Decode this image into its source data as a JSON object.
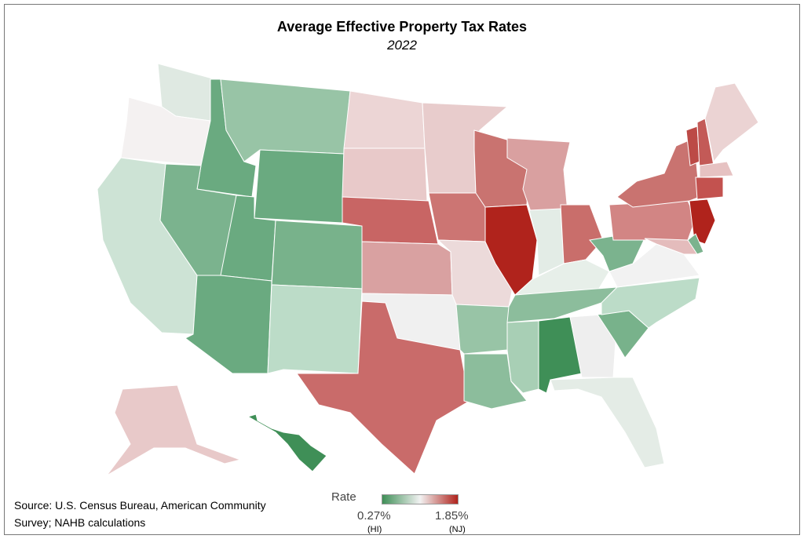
{
  "title": "Average Effective Property Tax Rates",
  "subtitle": "2022",
  "source": "Source: U.S. Census Bureau, American Community Survey; NAHB calculations",
  "legend": {
    "label": "Rate",
    "min": "0.27%",
    "min_state": "(HI)",
    "max": "1.85%",
    "max_state": "(NJ)",
    "color_low": "#3f8f57",
    "color_mid": "#f2f2f2",
    "color_high": "#b0231c"
  },
  "state_colors": {
    "WA": "#dfe9e2",
    "OR": "#f4f1f1",
    "CA": "#cde3d5",
    "ID": "#6aaa80",
    "NV": "#7bb38e",
    "MT": "#98c4a6",
    "WY": "#6aaa80",
    "UT": "#6aaa80",
    "AZ": "#6aaa80",
    "CO": "#78b28b",
    "NM": "#bcdcc8",
    "ND": "#ecd5d5",
    "SD": "#e8c9c9",
    "NE": "#c86564",
    "KS": "#d9a1a1",
    "OK": "#f0f0f0",
    "TX": "#c96b6a",
    "MN": "#e8cccc",
    "IA": "#cc7573",
    "MO": "#ecdada",
    "AR": "#98c4a6",
    "LA": "#8cbd9c",
    "WI": "#c97370",
    "IL": "#b0231c",
    "MI": "#d9a0a0",
    "IN": "#e3ece6",
    "OH": "#c96e6b",
    "KY": "#e7efe9",
    "TN": "#8cbd9c",
    "MS": "#a8cfb5",
    "AL": "#3f8f57",
    "GA": "#eeeeee",
    "FL": "#e4ece6",
    "SC": "#78b28b",
    "NC": "#bcdcc8",
    "VA": "#f2f2f2",
    "WV": "#7bb38e",
    "PA": "#d28584",
    "NY": "#c97370",
    "VT": "#bc4a46",
    "NH": "#c35a57",
    "ME": "#ebd3d3",
    "MA": "#e6c2c2",
    "CT": "#c3524f",
    "NJ": "#b0231c",
    "MD": "#e4bcbc",
    "DE": "#7bb38e",
    "AK": "#e8c9c9",
    "HI": "#3f8f57"
  }
}
